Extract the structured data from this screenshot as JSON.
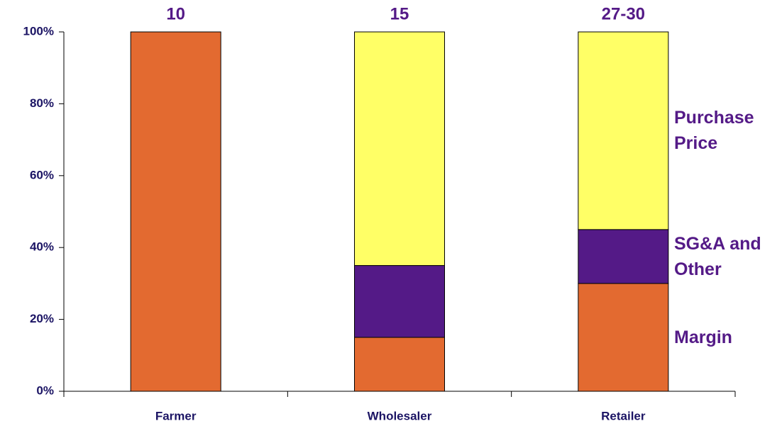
{
  "chart_data": {
    "type": "stacked_bar",
    "categories": [
      "Farmer",
      "Wholesaler",
      "Retailer"
    ],
    "top_labels": [
      "10",
      "15",
      "27-30"
    ],
    "series": [
      {
        "name": "Margin",
        "color": "#e36a30",
        "values": [
          100,
          15,
          30
        ]
      },
      {
        "name": "SG&A and Other",
        "color": "#541a87",
        "values": [
          0,
          20,
          15
        ]
      },
      {
        "name": "Purchase Price",
        "color": "#ffff66",
        "values": [
          0,
          65,
          55
        ]
      }
    ],
    "ylim": [
      0,
      100
    ],
    "yticks": [
      {
        "value": 0,
        "label": "0%"
      },
      {
        "value": 20,
        "label": "20%"
      },
      {
        "value": 40,
        "label": "40%"
      },
      {
        "value": 60,
        "label": "60%"
      },
      {
        "value": 80,
        "label": "80%"
      },
      {
        "value": 100,
        "label": "100%"
      }
    ]
  }
}
